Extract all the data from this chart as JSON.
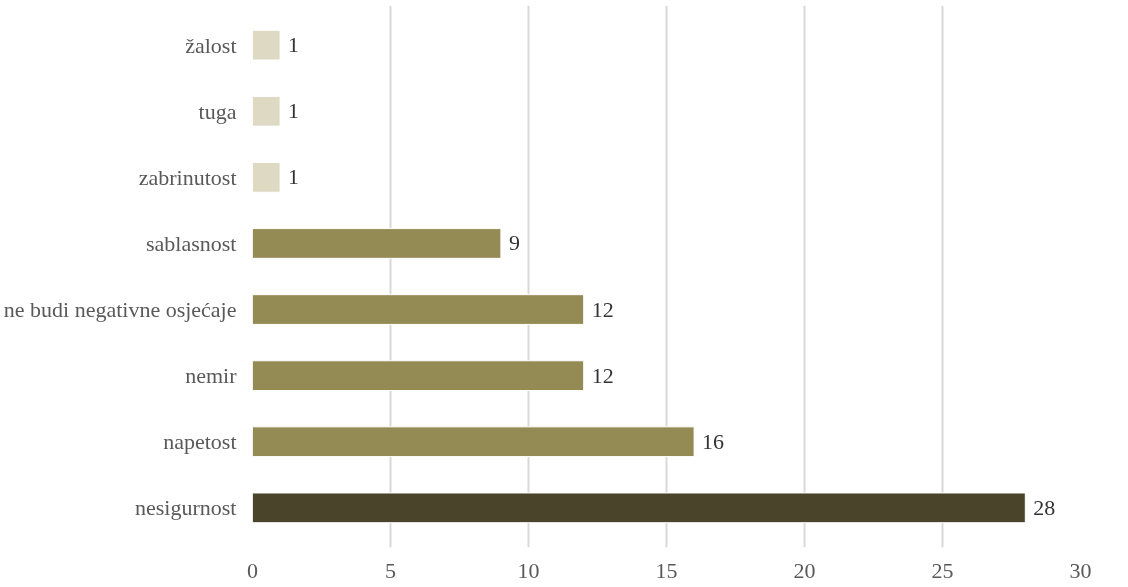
{
  "chart_data": {
    "type": "bar",
    "orientation": "horizontal",
    "categories": [
      "žalost",
      "tuga",
      "zabrinutost",
      "sablasnost",
      "ne budi negativne osjećaje",
      "nemir",
      "napetost",
      "nesigurnost"
    ],
    "values": [
      1,
      1,
      1,
      9,
      12,
      12,
      16,
      28
    ],
    "colors": [
      "#ddd9c3",
      "#ddd9c3",
      "#ddd9c3",
      "#948a54",
      "#948a54",
      "#948a54",
      "#948a54",
      "#4a452a"
    ],
    "xlim": [
      0,
      30
    ],
    "xticks": [
      0,
      5,
      10,
      15,
      20,
      25,
      30
    ],
    "grid": "x",
    "data_labels": true
  }
}
